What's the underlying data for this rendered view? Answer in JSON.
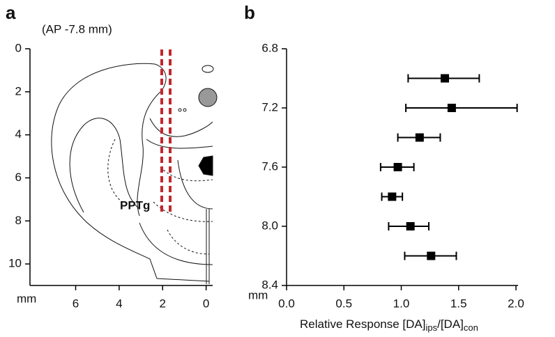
{
  "chart_data": [
    {
      "type": "atlas",
      "label": "a",
      "subtitle": "(AP -7.8 mm)",
      "annotation": "PPTg",
      "xlabel": "mm",
      "xlim": [
        8.1,
        -0.3
      ],
      "ylim": [
        11,
        0
      ],
      "xticks": [
        6,
        4,
        2,
        0
      ],
      "yticks": [
        0,
        2,
        4,
        6,
        8,
        10
      ]
    },
    {
      "type": "errorbar",
      "label": "b",
      "ylabel": "mm",
      "xlabel_parts": [
        "Relative Response [DA]",
        "ips",
        "/[DA]",
        "con"
      ],
      "y": [
        7.0,
        7.2,
        7.4,
        7.6,
        7.8,
        8.0,
        8.2
      ],
      "values": [
        1.38,
        1.44,
        1.16,
        0.97,
        0.92,
        1.08,
        1.26
      ],
      "errors_minus": [
        0.32,
        0.4,
        0.19,
        0.15,
        0.09,
        0.19,
        0.23
      ],
      "errors_plus": [
        0.3,
        0.57,
        0.18,
        0.14,
        0.09,
        0.16,
        0.22
      ],
      "color": "#000000",
      "xlim": [
        0,
        2
      ],
      "xticks": [
        {
          "value": 0,
          "label": "0.0"
        },
        0.5,
        {
          "value": 1,
          "label": "1.0"
        },
        1.5,
        {
          "value": 2,
          "label": "2.0"
        }
      ],
      "ylim": [
        8.4,
        6.8
      ],
      "yticks": [
        6.8,
        7.2,
        7.6,
        {
          "value": 8,
          "label": "8.0"
        },
        8.4
      ]
    }
  ]
}
